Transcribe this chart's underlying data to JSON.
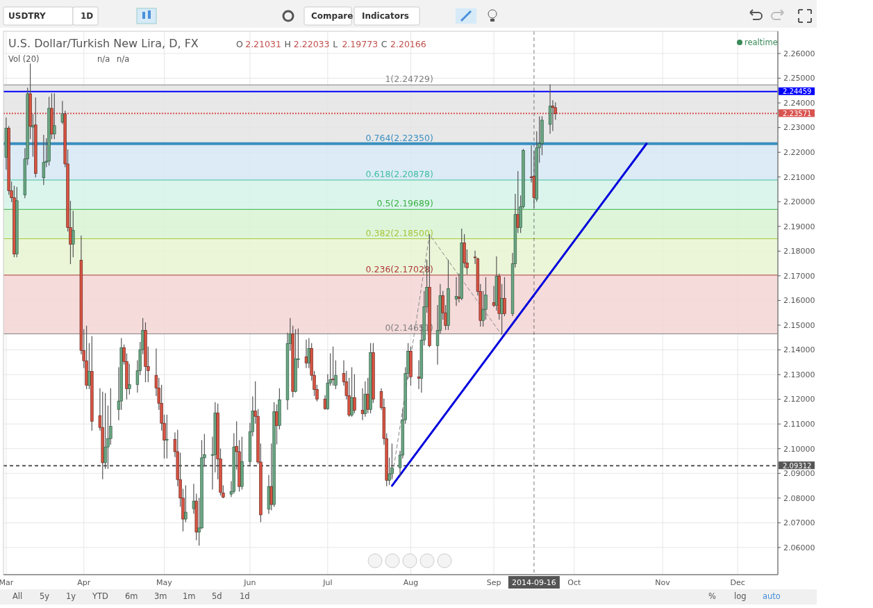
{
  "chart_data": {
    "type": "candlestick",
    "title": "U.S. Dollar/Turkish New Lira, D, FX",
    "subtitle": "O 2.21031 H 2.22033 L 2.19773 C 2.20166",
    "annotations": [
      "Vol (20)",
      "n/a",
      "n/a",
      "realtime",
      "USDTRY",
      "1D",
      "Compare",
      "Indicators",
      "All",
      "5y",
      "1y",
      "YTD",
      "6m",
      "3m",
      "1m",
      "5d",
      "1d",
      "%",
      "log",
      "auto"
    ],
    "xlim": [
      "2014-03-02",
      "2014-12-16"
    ],
    "xticks": [
      {
        "value": "2014-03-03",
        "label": "Mar"
      },
      {
        "value": "2014-04-01",
        "label": "Apr"
      },
      {
        "value": "2014-05-01",
        "label": "May"
      },
      {
        "value": "2014-06-02",
        "label": "Jun"
      },
      {
        "value": "2014-07-01",
        "label": "Jul"
      },
      {
        "value": "2014-08-01",
        "label": "Aug"
      },
      {
        "value": "2014-09-01",
        "label": "Sep"
      },
      {
        "value": "2014-10-01",
        "label": "Oct"
      },
      {
        "value": "2014-11-03",
        "label": "Nov"
      },
      {
        "value": "2014-12-01",
        "label": "Dec"
      }
    ],
    "ylim": [
      2.049,
      2.269
    ],
    "yticks": [
      {
        "value": 2.06,
        "label": "2.06000"
      },
      {
        "value": 2.07,
        "label": "2.07000"
      },
      {
        "value": 2.08,
        "label": "2.08000"
      },
      {
        "value": 2.09,
        "label": "2.09000"
      },
      {
        "value": 2.1,
        "label": "2.10000"
      },
      {
        "value": 2.11,
        "label": "2.11000"
      },
      {
        "value": 2.12,
        "label": "2.12000"
      },
      {
        "value": 2.13,
        "label": "2.13000"
      },
      {
        "value": 2.14,
        "label": "2.14000"
      },
      {
        "value": 2.15,
        "label": "2.15000"
      },
      {
        "value": 2.16,
        "label": "2.16000"
      },
      {
        "value": 2.17,
        "label": "2.17000"
      },
      {
        "value": 2.18,
        "label": "2.18000"
      },
      {
        "value": 2.19,
        "label": "2.19000"
      },
      {
        "value": 2.2,
        "label": "2.20000"
      },
      {
        "value": 2.21,
        "label": "2.21000"
      },
      {
        "value": 2.22,
        "label": "2.22000"
      },
      {
        "value": 2.23,
        "label": "2.23000"
      },
      {
        "value": 2.24,
        "label": "2.24000"
      },
      {
        "value": 2.25,
        "label": "2.25000"
      },
      {
        "value": 2.26,
        "label": "2.26000"
      }
    ],
    "grid": true,
    "bands": [
      {
        "axis": "y",
        "from": 2.2235,
        "to": 2.24729,
        "color": "#e4e4e4"
      },
      {
        "axis": "y",
        "from": 2.20878,
        "to": 2.2235,
        "color": "#d6e8f4"
      },
      {
        "axis": "y",
        "from": 2.19689,
        "to": 2.20878,
        "color": "#d5f3ea"
      },
      {
        "axis": "y",
        "from": 2.185,
        "to": 2.19689,
        "color": "#d8f3d4"
      },
      {
        "axis": "y",
        "from": 2.17028,
        "to": 2.185,
        "color": "#e8f4d2"
      },
      {
        "axis": "y",
        "from": 2.14651,
        "to": 2.17028,
        "color": "#f5d5d5"
      }
    ],
    "ref_lines": [
      {
        "axis": "y",
        "value": 2.24729,
        "label": "1(2.24729)",
        "color": "#808080",
        "line_style": "solid"
      },
      {
        "axis": "y",
        "value": 2.2235,
        "label": "0.764(2.22350)",
        "color": "#3a8fc0",
        "line_style": "solid"
      },
      {
        "axis": "y",
        "value": 2.20878,
        "label": "0.618(2.20878)",
        "color": "#3fbf9f",
        "line_style": "solid"
      },
      {
        "axis": "y",
        "value": 2.19689,
        "label": "0.5(2.19689)",
        "color": "#3cb043",
        "line_style": "solid"
      },
      {
        "axis": "y",
        "value": 2.185,
        "label": "0.382(2.18500)",
        "color": "#a8c43c",
        "line_style": "solid"
      },
      {
        "axis": "y",
        "value": 2.17028,
        "label": "0.236(2.17028)",
        "color": "#b03a3a",
        "line_style": "solid"
      },
      {
        "axis": "y",
        "value": 2.14651,
        "label": "0(2.14651)",
        "color": "#808080",
        "line_style": "solid"
      },
      {
        "axis": "y",
        "value": 2.24459,
        "label": "2.24459",
        "color": "#0000ff",
        "line_style": "solid"
      },
      {
        "axis": "y",
        "value": 2.23571,
        "label": "2.23571",
        "color": "#d9534f",
        "line_style": "dotted"
      },
      {
        "axis": "y",
        "value": 2.09312,
        "label": "2.09312",
        "color": "#555555",
        "line_style": "dashed"
      },
      {
        "axis": "x",
        "value": "2014-09-16",
        "label": "2014-09-16",
        "color": "#555555",
        "line_style": "dashed"
      }
    ],
    "series": [
      {
        "type": "line",
        "x": [
          "2014-07-25",
          "2014-08-08",
          "2014-09-04"
        ],
        "values": [
          2.0878,
          2.1867,
          2.146
        ],
        "color": "#888888",
        "line_style": "dashed"
      },
      {
        "type": "line",
        "x": [
          "2014-07-25",
          "2014-10-28"
        ],
        "values": [
          2.085,
          2.2235
        ],
        "color": "#0000dd",
        "line_style": "solid"
      },
      {
        "x": [
          "2014-03-03",
          "2014-03-04",
          "2014-03-05",
          "2014-03-06",
          "2014-03-07",
          "2014-03-10",
          "2014-03-11",
          "2014-03-12",
          "2014-03-13",
          "2014-03-14",
          "2014-03-17",
          "2014-03-18",
          "2014-03-19",
          "2014-03-20",
          "2014-03-21",
          "2014-03-24",
          "2014-03-25",
          "2014-03-26",
          "2014-03-27",
          "2014-03-28",
          "2014-03-31",
          "2014-04-01",
          "2014-04-02",
          "2014-04-03",
          "2014-04-04",
          "2014-04-07",
          "2014-04-08",
          "2014-04-09",
          "2014-04-10",
          "2014-04-11",
          "2014-04-14",
          "2014-04-15",
          "2014-04-16",
          "2014-04-17",
          "2014-04-18",
          "2014-04-21",
          "2014-04-22",
          "2014-04-23",
          "2014-04-24",
          "2014-04-25",
          "2014-04-28",
          "2014-04-29",
          "2014-04-30",
          "2014-05-01",
          "2014-05-02",
          "2014-05-05",
          "2014-05-06",
          "2014-05-07",
          "2014-05-08",
          "2014-05-09",
          "2014-05-12",
          "2014-05-13",
          "2014-05-14",
          "2014-05-15",
          "2014-05-16",
          "2014-05-19",
          "2014-05-20",
          "2014-05-21",
          "2014-05-22",
          "2014-05-23",
          "2014-05-26",
          "2014-05-27",
          "2014-05-28",
          "2014-05-29",
          "2014-05-30",
          "2014-06-02",
          "2014-06-03",
          "2014-06-04",
          "2014-06-05",
          "2014-06-06",
          "2014-06-09",
          "2014-06-10",
          "2014-06-11",
          "2014-06-12",
          "2014-06-13",
          "2014-06-16",
          "2014-06-17",
          "2014-06-18",
          "2014-06-19",
          "2014-06-20",
          "2014-06-23",
          "2014-06-24",
          "2014-06-25",
          "2014-06-26",
          "2014-06-27",
          "2014-06-30",
          "2014-07-01",
          "2014-07-02",
          "2014-07-03",
          "2014-07-04",
          "2014-07-07",
          "2014-07-08",
          "2014-07-09",
          "2014-07-10",
          "2014-07-11",
          "2014-07-14",
          "2014-07-15",
          "2014-07-16",
          "2014-07-17",
          "2014-07-18",
          "2014-07-21",
          "2014-07-22",
          "2014-07-23",
          "2014-07-24",
          "2014-07-25",
          "2014-07-28",
          "2014-07-29",
          "2014-07-30",
          "2014-07-31",
          "2014-08-01",
          "2014-08-04",
          "2014-08-05",
          "2014-08-06",
          "2014-08-07",
          "2014-08-08",
          "2014-08-11",
          "2014-08-12",
          "2014-08-13",
          "2014-08-14",
          "2014-08-15",
          "2014-08-18",
          "2014-08-19",
          "2014-08-20",
          "2014-08-21",
          "2014-08-22",
          "2014-08-25",
          "2014-08-26",
          "2014-08-27",
          "2014-08-28",
          "2014-08-29",
          "2014-09-01",
          "2014-09-02",
          "2014-09-03",
          "2014-09-04",
          "2014-09-05",
          "2014-09-08",
          "2014-09-09",
          "2014-09-10",
          "2014-09-11",
          "2014-09-12",
          "2014-09-15",
          "2014-09-16",
          "2014-09-17",
          "2014-09-18",
          "2014-09-19",
          "2014-09-22",
          "2014-09-23",
          "2014-09-24"
        ],
        "ohlc": [
          [
            2.2179,
            2.2339,
            2.2131,
            2.2297
          ],
          [
            2.2297,
            2.2305,
            2.203,
            2.2044
          ],
          [
            2.2044,
            2.208,
            2.2,
            2.2016
          ],
          [
            2.2016,
            2.2063,
            2.1777,
            2.1788
          ],
          [
            2.1788,
            2.2058,
            2.1777,
            2.2004
          ],
          [
            2.2027,
            2.2215,
            2.2016,
            2.2173
          ],
          [
            2.2173,
            2.246,
            2.215,
            2.2437
          ],
          [
            2.2437,
            2.2558,
            2.2255,
            2.2305
          ],
          [
            2.2302,
            2.2353,
            2.2184,
            2.2308
          ],
          [
            2.2311,
            2.242,
            2.21,
            2.2114
          ],
          [
            2.2097,
            2.2269,
            2.2069,
            2.2159
          ],
          [
            2.2159,
            2.2255,
            2.2142,
            2.2164
          ],
          [
            2.2164,
            2.2423,
            2.2148,
            2.2378
          ],
          [
            2.2378,
            2.2437,
            2.2255,
            2.2274
          ],
          [
            2.2274,
            2.2437,
            2.2255,
            2.2308
          ],
          [
            2.2322,
            2.2406,
            2.2316,
            2.2356
          ],
          [
            2.2356,
            2.2367,
            2.2142,
            2.2153
          ],
          [
            2.2153,
            2.221,
            2.1881,
            2.1895
          ],
          [
            2.1895,
            2.2002,
            2.1749,
            2.1828
          ],
          [
            2.1828,
            2.1962,
            2.1777,
            2.1884
          ],
          [
            2.1763,
            2.1861,
            2.1384,
            2.1398
          ],
          [
            2.1398,
            2.1482,
            2.1328,
            2.1356
          ],
          [
            2.1356,
            2.1496,
            2.1243,
            2.1257
          ],
          [
            2.1257,
            2.1426,
            2.1243,
            2.1313
          ],
          [
            2.1313,
            2.1454,
            2.1075,
            2.1111
          ],
          [
            2.1134,
            2.1243,
            2.1075,
            2.1086
          ],
          [
            2.1086,
            2.1229,
            2.0878,
            2.0943
          ],
          [
            2.0943,
            2.1223,
            2.092,
            2.1007
          ],
          [
            2.1007,
            2.1173,
            2.092,
            2.1041
          ],
          [
            2.1041,
            2.1243,
            2.1018,
            2.1091
          ],
          [
            2.1159,
            2.1328,
            2.1117,
            2.1193
          ],
          [
            2.1193,
            2.1446,
            2.1159,
            2.1409
          ],
          [
            2.1409,
            2.142,
            2.1342,
            2.1353
          ],
          [
            2.1353,
            2.1384,
            2.1201,
            2.1243
          ],
          [
            2.1243,
            2.1342,
            2.1221,
            2.126
          ],
          [
            2.126,
            2.1356,
            2.1229,
            2.1316
          ],
          [
            2.1316,
            2.1431,
            2.13,
            2.1401
          ],
          [
            2.1401,
            2.1527,
            2.1384,
            2.1479
          ],
          [
            2.1479,
            2.151,
            2.1271,
            2.1333
          ],
          [
            2.1333,
            2.1412,
            2.1271,
            2.1316
          ],
          [
            2.1297,
            2.1404,
            2.1215,
            2.1246
          ],
          [
            2.1246,
            2.1285,
            2.1159,
            2.1184
          ],
          [
            2.1184,
            2.1257,
            2.1075,
            2.1103
          ],
          [
            2.1103,
            2.1136,
            2.0962,
            2.1035
          ],
          [
            2.1035,
            2.1136,
            2.0962,
            2.1038
          ],
          [
            2.1038,
            2.1064,
            2.0968,
            2.0988
          ],
          [
            2.0988,
            2.1075,
            2.085,
            2.0875
          ],
          [
            2.0875,
            2.0982,
            2.0766,
            2.08
          ],
          [
            2.08,
            2.0836,
            2.0667,
            2.0715
          ],
          [
            2.0715,
            2.085,
            2.0704,
            2.0743
          ],
          [
            2.0757,
            2.0856,
            2.0738,
            2.0788
          ],
          [
            2.0788,
            2.0816,
            2.0631,
            2.0662
          ],
          [
            2.0662,
            2.0799,
            2.0609,
            2.0679
          ],
          [
            2.0679,
            2.1033,
            2.0676,
            2.0963
          ],
          [
            2.0963,
            2.1058,
            2.0929,
            2.0976
          ],
          [
            2.0974,
            2.1047,
            2.0836,
            2.0976
          ],
          [
            2.0976,
            2.1187,
            2.0906,
            2.1145
          ],
          [
            2.1145,
            2.1181,
            2.0878,
            2.0958
          ],
          [
            2.0958,
            2.0999,
            2.0812,
            2.0823
          ],
          [
            2.0821,
            2.085,
            2.0801,
            2.0804
          ],
          [
            2.0816,
            2.0867,
            2.0806,
            2.0827
          ],
          [
            2.0827,
            2.1061,
            2.082,
            2.1007
          ],
          [
            2.101,
            2.1109,
            2.0917,
            2.0988
          ],
          [
            2.0988,
            2.1033,
            2.0828,
            2.0847
          ],
          [
            2.0847,
            2.1047,
            2.0836,
            2.0948
          ],
          [
            2.0948,
            2.1103,
            2.0934,
            2.1069
          ],
          [
            2.1069,
            2.121,
            2.1052,
            2.1153
          ],
          [
            2.1153,
            2.1271,
            2.1103,
            2.1131
          ],
          [
            2.1131,
            2.1159,
            2.094,
            2.0946
          ],
          [
            2.0946,
            2.1019,
            2.0704,
            2.0732
          ],
          [
            2.0755,
            2.0892,
            2.0738,
            2.0847
          ],
          [
            2.0847,
            2.1019,
            2.0752,
            2.0774
          ],
          [
            2.0774,
            2.1187,
            2.0766,
            2.115
          ],
          [
            2.115,
            2.1178,
            2.1019,
            2.1094
          ],
          [
            2.1094,
            2.1243,
            2.108,
            2.1198
          ],
          [
            2.1198,
            2.1468,
            2.1159,
            2.1426
          ],
          [
            2.1426,
            2.1527,
            2.1398,
            2.1465
          ],
          [
            2.1465,
            2.1496,
            2.121,
            2.1232
          ],
          [
            2.1232,
            2.1482,
            2.1229,
            2.1364
          ],
          [
            2.1362,
            2.1485,
            2.1328,
            2.1364
          ],
          [
            2.1372,
            2.144,
            2.1328,
            2.1347
          ],
          [
            2.1347,
            2.1446,
            2.1328,
            2.1406
          ],
          [
            2.1406,
            2.1426,
            2.1277,
            2.1297
          ],
          [
            2.1297,
            2.1313,
            2.1215,
            2.124
          ],
          [
            2.124,
            2.1257,
            2.1193,
            2.1201
          ],
          [
            2.1201,
            2.1215,
            2.1159,
            2.1162
          ],
          [
            2.1162,
            2.13,
            2.1159,
            2.1266
          ],
          [
            2.1266,
            2.1384,
            2.1257,
            2.128
          ],
          [
            2.1282,
            2.1412,
            2.1257,
            2.1279
          ],
          [
            2.1257,
            2.1356,
            2.1243,
            2.1297
          ],
          [
            2.1305,
            2.1356,
            2.1257,
            2.1271
          ],
          [
            2.1271,
            2.1313,
            2.1201,
            2.1215
          ],
          [
            2.1215,
            2.1285,
            2.1131,
            2.1136
          ],
          [
            2.1136,
            2.1328,
            2.1131,
            2.1207
          ],
          [
            2.1207,
            2.13,
            2.1145,
            2.1156
          ],
          [
            2.1156,
            2.1243,
            2.1117,
            2.1142
          ],
          [
            2.1142,
            2.1271,
            2.1131,
            2.1221
          ],
          [
            2.1221,
            2.1285,
            2.1145,
            2.1159
          ],
          [
            2.1159,
            2.1426,
            2.1145,
            2.1389
          ],
          [
            2.1389,
            2.1426,
            2.1187,
            2.1201
          ],
          [
            2.1232,
            2.1243,
            2.1159,
            2.1167
          ],
          [
            2.1167,
            2.1201,
            2.1018,
            2.1041
          ],
          [
            2.1041,
            2.1061,
            2.085,
            2.0872
          ],
          [
            2.0872,
            2.0962,
            2.0855,
            2.0898
          ],
          [
            2.0898,
            2.1019,
            2.0878,
            2.0923
          ],
          [
            2.0923,
            2.099,
            2.0889,
            2.0974
          ],
          [
            2.0974,
            2.1159,
            2.0962,
            2.1117
          ],
          [
            2.1117,
            2.1328,
            2.1103,
            2.1305
          ],
          [
            2.1305,
            2.1426,
            2.1285,
            2.1395
          ],
          [
            2.1395,
            2.1412,
            2.1257,
            2.1291
          ],
          [
            2.1291,
            2.1356,
            2.1243,
            2.1285
          ],
          [
            2.1285,
            2.15,
            2.1229,
            2.144
          ],
          [
            2.144,
            2.1637,
            2.142,
            2.1575
          ],
          [
            2.1575,
            2.1763,
            2.1552,
            2.1653
          ],
          [
            2.1653,
            2.1867,
            2.1412,
            2.1417
          ],
          [
            2.1417,
            2.158,
            2.1342,
            2.1479
          ],
          [
            2.1479,
            2.1665,
            2.1468,
            2.162
          ],
          [
            2.162,
            2.1637,
            2.1524,
            2.155
          ],
          [
            2.155,
            2.158,
            2.1482,
            2.1499
          ],
          [
            2.1499,
            2.1763,
            2.1482,
            2.1648
          ],
          [
            2.1606,
            2.1693,
            2.158,
            2.1617
          ],
          [
            2.1614,
            2.1707,
            2.1594,
            2.1608
          ],
          [
            2.1608,
            2.1889,
            2.1603,
            2.1833
          ],
          [
            2.1833,
            2.1867,
            2.1735,
            2.1752
          ],
          [
            2.1752,
            2.1805,
            2.1707,
            2.1732
          ],
          [
            2.1776,
            2.18,
            2.1749,
            2.1774
          ],
          [
            2.1769,
            2.1772,
            2.1622,
            2.1637
          ],
          [
            2.1637,
            2.1665,
            2.1496,
            2.1519
          ],
          [
            2.1519,
            2.1637,
            2.1496,
            2.1564
          ],
          [
            2.1564,
            2.1693,
            2.1524,
            2.1622
          ],
          [
            2.1592,
            2.1657,
            2.1575,
            2.158
          ],
          [
            2.158,
            2.1777,
            2.1561,
            2.1698
          ],
          [
            2.1698,
            2.1707,
            2.1524,
            2.1547
          ],
          [
            2.1547,
            2.1665,
            2.1465,
            2.1609
          ],
          [
            2.1609,
            2.1693,
            2.1538,
            2.1547
          ],
          [
            2.1547,
            2.1791,
            2.1538,
            2.1749
          ],
          [
            2.1749,
            2.203,
            2.1735,
            2.1948
          ],
          [
            2.1948,
            2.2122,
            2.1875,
            2.1895
          ],
          [
            2.1895,
            2.2024,
            2.1875,
            2.198
          ],
          [
            2.198,
            2.2212,
            2.1974,
            2.2207
          ],
          [
            2.21,
            2.2226,
            2.208,
            2.2097
          ],
          [
            2.21031,
            2.22033,
            2.19773,
            2.20166
          ],
          [
            2.201,
            2.2283,
            2.2002,
            2.2218
          ],
          [
            2.2218,
            2.2344,
            2.2159,
            2.2235
          ],
          [
            2.2235,
            2.2344,
            2.219,
            2.233
          ],
          [
            2.2313,
            2.24729,
            2.2277,
            2.2387
          ],
          [
            2.2387,
            2.2409,
            2.2288,
            2.2381
          ],
          [
            2.2381,
            2.2401,
            2.2333,
            2.23571
          ]
        ]
      }
    ]
  }
}
